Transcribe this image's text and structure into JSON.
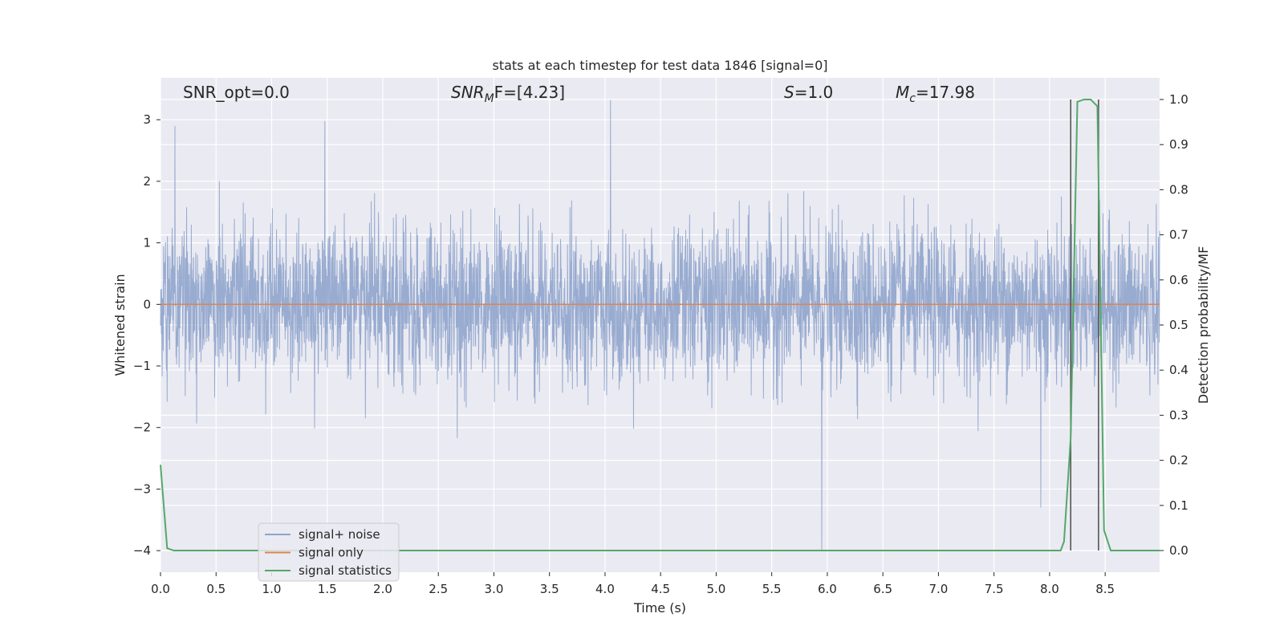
{
  "chart_data": {
    "type": "line",
    "title": "stats at each timestep for test data 1846 [signal=0]",
    "xlabel": "Time (s)",
    "ylabel_left": "Whitened strain",
    "ylabel_right": "Detection probability/MF",
    "xlim": [
      0.0,
      8.99
    ],
    "ylim_left": [
      -4.35,
      3.68
    ],
    "ylim_right": [
      -0.048,
      1.048
    ],
    "x_ticks": [
      "0.0",
      "0.5",
      "1.0",
      "1.5",
      "2.0",
      "2.5",
      "3.0",
      "3.5",
      "4.0",
      "4.5",
      "5.0",
      "5.5",
      "6.0",
      "6.5",
      "7.0",
      "7.5",
      "8.0",
      "8.5"
    ],
    "y_left_ticks": [
      "3",
      "2",
      "1",
      "0",
      "−1",
      "−2",
      "−3",
      "−4"
    ],
    "y_right_ticks": [
      "1.0",
      "0.9",
      "0.8",
      "0.7",
      "0.6",
      "0.5",
      "0.4",
      "0.3",
      "0.2",
      "0.1",
      "0.0"
    ],
    "grid": true,
    "legend_position": "lower-left",
    "annotations": {
      "snr_opt": "SNR_opt=0.0",
      "snr_mf_main": "SNR",
      "snr_mf_sub": "M",
      "snr_mf_rest": "F=[4.23]",
      "s_main": "S",
      "s_rest": "=1.0",
      "mc_main": "M",
      "mc_sub": "c",
      "mc_rest": "=17.98"
    },
    "series": [
      {
        "name": "signal+ noise",
        "color": "#8fa4cc",
        "description_values": "whitened noise, approx. amplitude -2 to 2",
        "peaks": [
          {
            "x": 0.13,
            "y": 2.9
          },
          {
            "x": 1.48,
            "y": 2.98
          },
          {
            "x": 4.05,
            "y": 3.32
          },
          {
            "x": 5.95,
            "y": -4.0
          },
          {
            "x": 7.92,
            "y": -3.3
          }
        ]
      },
      {
        "name": "signal only",
        "color": "#dd8452",
        "x": [
          0.0,
          8.99
        ],
        "y": [
          0.0,
          0.0
        ]
      },
      {
        "name": "signal statistics",
        "color": "#55a868",
        "axis": "right",
        "x": [
          0.0,
          0.06,
          0.12,
          0.18,
          8.1,
          8.13,
          8.19,
          8.25,
          8.31,
          8.37,
          8.43,
          8.49,
          8.55,
          8.99
        ],
        "y": [
          0.19,
          0.005,
          0.0,
          0.0,
          0.0,
          0.02,
          0.25,
          0.995,
          1.0,
          1.0,
          0.985,
          0.045,
          0.0,
          0.0
        ]
      }
    ],
    "vertical_lines": [
      8.19,
      8.44
    ],
    "colors": {
      "plot_background": "#eaeaf2",
      "grid": "#ffffff",
      "vline": "#555555"
    }
  }
}
